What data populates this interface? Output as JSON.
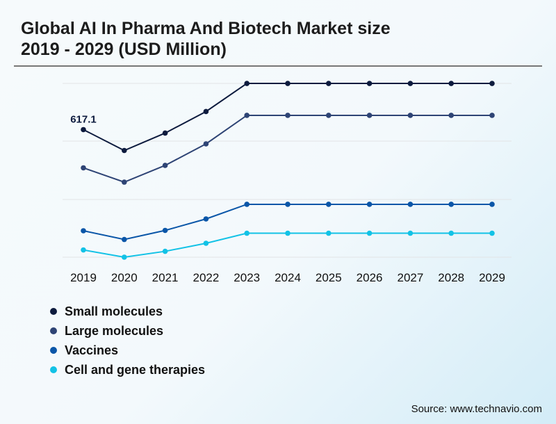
{
  "title_line1": "Global AI In Pharma And Biotech Market size",
  "title_line2": "2019 - 2029 (USD Million)",
  "source": "Source: www.technavio.com",
  "chart_data": {
    "type": "line",
    "title": "Global AI In Pharma And Biotech Market size 2019 - 2029 (USD Million)",
    "categories": [
      "2019",
      "2020",
      "2021",
      "2022",
      "2023",
      "2024",
      "2025",
      "2026",
      "2027",
      "2028",
      "2029"
    ],
    "grid": true,
    "legend_position": "bottom-left",
    "annotation": {
      "series": "Small molecules",
      "category": "2019",
      "label": "617.1"
    },
    "series": [
      {
        "name": "Small molecules",
        "color": "#0d1b3e",
        "values": [
          617.1,
          521.4,
          601.2,
          700.1,
          829.1,
          829.1,
          829.1,
          829.1,
          829.1,
          829.1,
          829.1
        ]
      },
      {
        "name": "Large molecules",
        "color": "#2e4475",
        "values": [
          441.7,
          376.3,
          452.9,
          551.7,
          682.5,
          682.5,
          682.5,
          682.5,
          682.5,
          682.5,
          682.5
        ]
      },
      {
        "name": "Vaccines",
        "color": "#0a56a8",
        "values": [
          153.1,
          113.2,
          154.7,
          207.3,
          274.3,
          274.3,
          274.3,
          274.3,
          274.3,
          274.3,
          274.3
        ]
      },
      {
        "name": "Cell and gene therapies",
        "color": "#12c2e6",
        "values": [
          65.0,
          31.9,
          58.8,
          95.7,
          141.9,
          141.9,
          141.9,
          141.9,
          141.9,
          141.9,
          141.9
        ]
      }
    ]
  }
}
